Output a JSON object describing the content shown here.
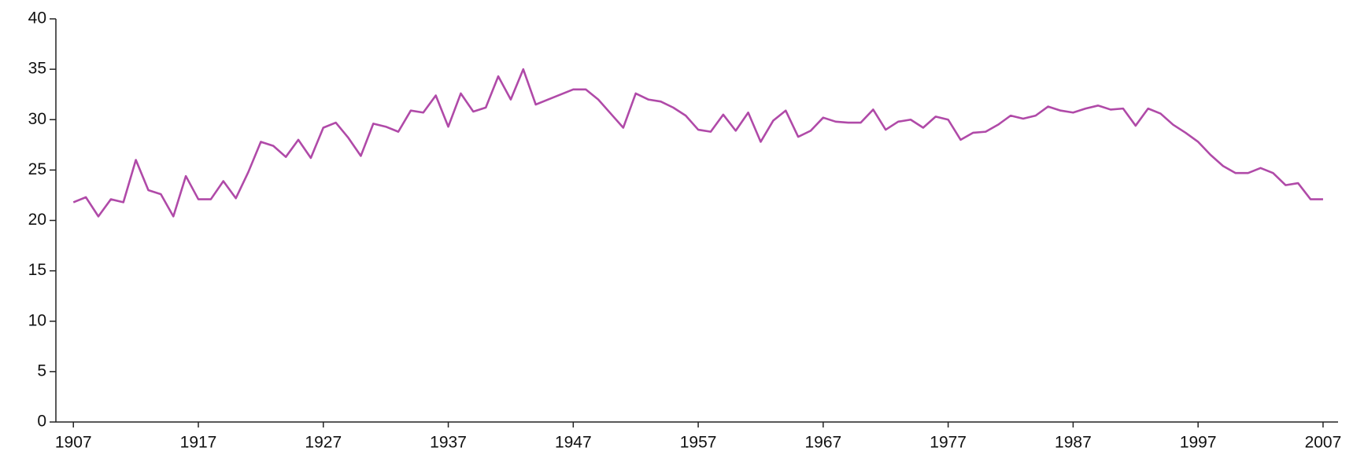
{
  "chart_data": {
    "type": "line",
    "x": [
      1907,
      1908,
      1909,
      1910,
      1911,
      1912,
      1913,
      1914,
      1915,
      1916,
      1917,
      1918,
      1919,
      1920,
      1921,
      1922,
      1923,
      1924,
      1925,
      1926,
      1927,
      1928,
      1929,
      1930,
      1931,
      1932,
      1933,
      1934,
      1935,
      1936,
      1937,
      1938,
      1939,
      1940,
      1941,
      1942,
      1943,
      1944,
      1945,
      1946,
      1947,
      1948,
      1949,
      1950,
      1951,
      1952,
      1953,
      1954,
      1955,
      1956,
      1957,
      1958,
      1959,
      1960,
      1961,
      1962,
      1963,
      1964,
      1965,
      1966,
      1967,
      1968,
      1969,
      1970,
      1971,
      1972,
      1973,
      1974,
      1975,
      1976,
      1977,
      1978,
      1979,
      1980,
      1981,
      1982,
      1983,
      1984,
      1985,
      1986,
      1987,
      1988,
      1989,
      1990,
      1991,
      1992,
      1993,
      1994,
      1995,
      1996,
      1997,
      1998,
      1999,
      2000,
      2001,
      2002,
      2003,
      2004,
      2005,
      2006,
      2007
    ],
    "values": [
      21.8,
      22.3,
      20.4,
      22.1,
      21.8,
      26.0,
      23.0,
      22.6,
      20.4,
      24.4,
      22.1,
      22.1,
      23.9,
      22.2,
      24.8,
      27.8,
      27.4,
      26.3,
      28.0,
      26.2,
      29.2,
      29.7,
      28.2,
      26.4,
      29.6,
      29.3,
      28.8,
      30.9,
      30.7,
      32.4,
      29.3,
      32.6,
      30.8,
      31.2,
      34.3,
      32.0,
      35.0,
      31.5,
      32.0,
      32.5,
      33.0,
      33.0,
      32.0,
      30.6,
      29.2,
      32.6,
      32.0,
      31.8,
      31.2,
      30.4,
      29.0,
      28.8,
      30.5,
      28.9,
      30.7,
      27.8,
      29.9,
      30.9,
      28.3,
      28.9,
      30.2,
      29.8,
      29.7,
      29.7,
      31.0,
      29.0,
      29.8,
      30.0,
      29.2,
      30.3,
      30.0,
      28.0,
      28.7,
      28.8,
      29.5,
      30.4,
      30.1,
      30.4,
      31.3,
      30.9,
      30.7,
      31.1,
      31.4,
      31.0,
      31.1,
      29.4,
      31.1,
      30.6,
      29.5,
      28.7,
      27.8,
      26.5,
      25.4,
      24.7,
      24.7,
      25.2,
      24.7,
      23.5,
      23.7,
      22.1,
      22.1
    ],
    "color": "#b04aa8",
    "xlim": [
      1905.6,
      2008.2
    ],
    "xticks": [
      1907,
      1917,
      1927,
      1937,
      1947,
      1957,
      1967,
      1977,
      1987,
      1997,
      2007
    ],
    "ylim": [
      0,
      40
    ],
    "yticks": [
      0,
      5,
      10,
      15,
      20,
      25,
      30,
      35,
      40
    ],
    "grid": false
  }
}
